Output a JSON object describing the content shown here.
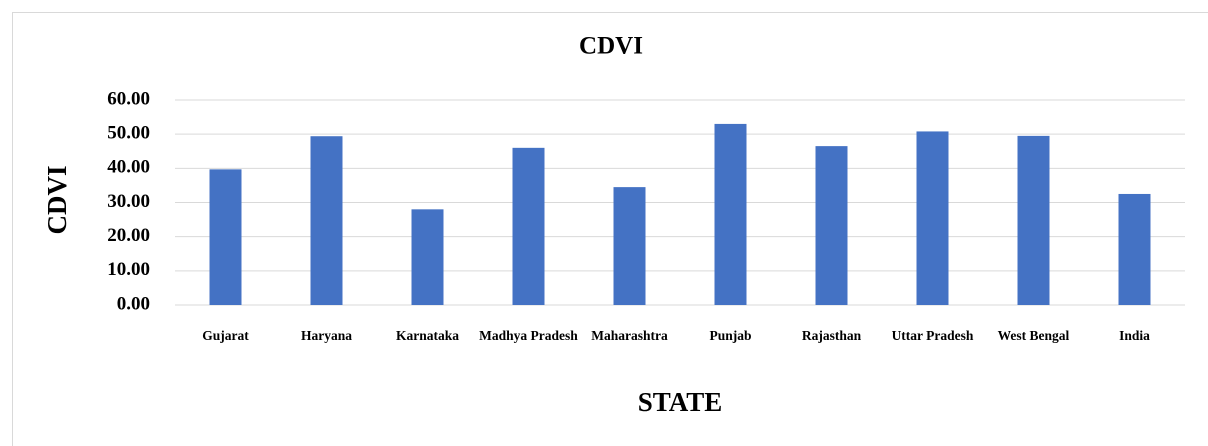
{
  "chart_data": {
    "type": "bar",
    "title": "CDVI",
    "y_label": "CDVI",
    "x_label": "STATE",
    "categories": [
      "Gujarat",
      "Haryana",
      "Karnataka",
      "Madhya Pradesh",
      "Maharashtra",
      "Punjab",
      "Rajasthan",
      "Uttar Pradesh",
      "West Bengal",
      "India"
    ],
    "values": [
      39.7,
      49.4,
      28.0,
      46.0,
      34.5,
      53.0,
      46.5,
      50.8,
      49.5,
      32.5
    ],
    "color": "#4472c4",
    "ylim": [
      0,
      60
    ],
    "yticks": [
      {
        "value": 0,
        "label": "0.00"
      },
      {
        "value": 10,
        "label": "10.00"
      },
      {
        "value": 20,
        "label": "20.00"
      },
      {
        "value": 30,
        "label": "30.00"
      },
      {
        "value": 40,
        "label": "40.00"
      },
      {
        "value": 50,
        "label": "50.00"
      },
      {
        "value": 60,
        "label": "60.00"
      }
    ],
    "grid": true
  }
}
